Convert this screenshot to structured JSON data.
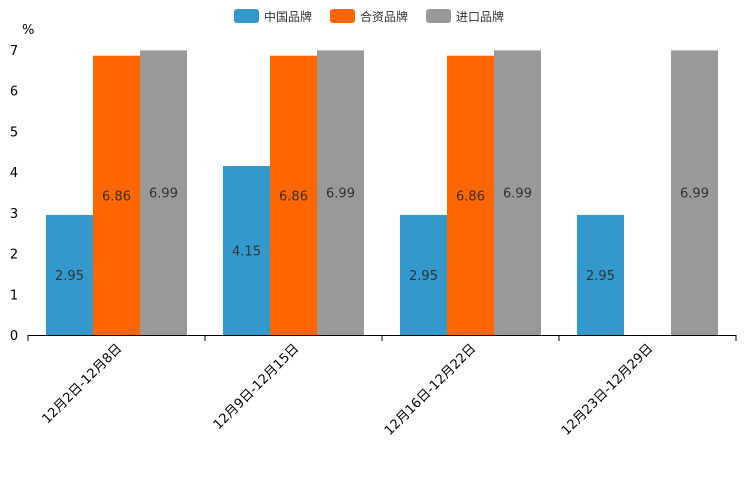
{
  "chart_data": {
    "type": "bar",
    "title": "",
    "xlabel": "",
    "ylabel": "%",
    "ylim": [
      0,
      7
    ],
    "yticks": [
      0,
      1,
      2,
      3,
      4,
      5,
      6,
      7
    ],
    "grid": false,
    "legend_position": "top-center",
    "categories": [
      "12月2日-12月8日",
      "12月9日-12月15日",
      "12月16日-12月22日",
      "12月23日-12月29日"
    ],
    "series": [
      {
        "name": "中国品牌",
        "color": "#3399cc",
        "values": [
          2.95,
          4.15,
          2.95,
          2.95
        ]
      },
      {
        "name": "合资品牌",
        "color": "#ff6600",
        "values": [
          6.86,
          6.86,
          6.86,
          null
        ]
      },
      {
        "name": "进口品牌",
        "color": "#999999",
        "values": [
          6.99,
          6.99,
          6.99,
          6.99
        ]
      }
    ]
  }
}
